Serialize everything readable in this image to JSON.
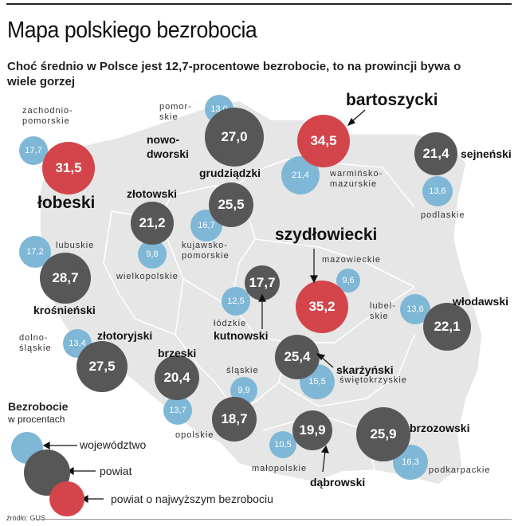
{
  "title": "Mapa polskiego bezrobocia",
  "subtitle": "Choć średnio w Polsce jest 12,7-procentowe bezrobocie, to na prowincji bywa o wiele gorzej",
  "colors": {
    "wojewodztwo": "#7fb7d6",
    "powiat": "#575757",
    "powiat_max": "#d3454b",
    "map": "#e6e6e6"
  },
  "voivodeships": [
    {
      "name": "zachodnio-\npomorskie",
      "value": "17,7"
    },
    {
      "name": "pomor-\nskie",
      "value": "13,0"
    },
    {
      "name": "warmińsko-\nmazurskie",
      "value": "21,4"
    },
    {
      "name": "podlaskie",
      "value": "13,6"
    },
    {
      "name": "lubuskie",
      "value": "17,2"
    },
    {
      "name": "wielkopolskie",
      "value": "9,8"
    },
    {
      "name": "kujawsko-\npomorskie",
      "value": "16,7"
    },
    {
      "name": "mazowieckie",
      "value": "9,6"
    },
    {
      "name": "łódzkie",
      "value": "12,5"
    },
    {
      "name": "lubel-\nskie",
      "value": "13,6"
    },
    {
      "name": "dolno-\nśląskie",
      "value": "13,4"
    },
    {
      "name": "śląskie",
      "value": "9,9"
    },
    {
      "name": "świętokrzyskie",
      "value": "15,5"
    },
    {
      "name": "opolskie",
      "value": "13,7"
    },
    {
      "name": "małopolskie",
      "value": "10,5"
    },
    {
      "name": "podkarpackie",
      "value": "16,3"
    }
  ],
  "counties": [
    {
      "name": "łobeski",
      "value": "31,5",
      "highest": true
    },
    {
      "name": "bartoszycki",
      "value": "34,5",
      "highest": true
    },
    {
      "name": "szydłowiecki",
      "value": "35,2",
      "highest": true
    },
    {
      "name": "nowo-\ndworski",
      "value": "27,0"
    },
    {
      "name": "sejneński",
      "value": "21,4"
    },
    {
      "name": "grudziądzki",
      "value": "25,5"
    },
    {
      "name": "złotowski",
      "value": "21,2"
    },
    {
      "name": "krośnieński",
      "value": "28,7"
    },
    {
      "name": "kutnowski",
      "value": "17,7"
    },
    {
      "name": "włodawski",
      "value": "22,1"
    },
    {
      "name": "złotoryjski",
      "value": "27,5"
    },
    {
      "name": "brzeski",
      "value": "20,4"
    },
    {
      "name": "skarżyński",
      "value": "25,4"
    },
    {
      "name": "brzozowski",
      "value": "25,9"
    },
    {
      "name": "dąbrowski",
      "value": "19,9"
    },
    {
      "name": "",
      "value": "18,7"
    }
  ],
  "legend": {
    "title": "Bezrobocie",
    "subtitle": "w procentach",
    "wojewodztwo": "województwo",
    "powiat": "powiat",
    "powiat_max": "powiat o najwyższym bezrobociu"
  },
  "source": "źródło: GUS"
}
